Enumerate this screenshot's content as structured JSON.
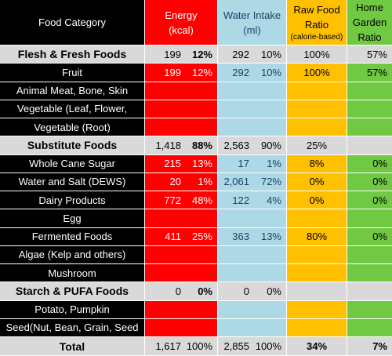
{
  "header": {
    "category": "Food Category",
    "energy_line1": "Energy",
    "energy_line2": "(kcal)",
    "water_line1": "Water Intake",
    "water_line2": "(ml)",
    "raw_line1": "Raw Food",
    "raw_line2": "Ratio",
    "raw_line3": "(calorie-based)",
    "garden_line1": "Home",
    "garden_line2": "Garden",
    "garden_line3": "Ratio"
  },
  "rows": [
    {
      "type": "section",
      "category": "Flesh & Fresh Foods",
      "energy": "199",
      "energy_pct": "12%",
      "water": "292",
      "water_pct": "10%",
      "raw": "100%",
      "garden": "57%"
    },
    {
      "type": "item",
      "category": "Fruit",
      "energy": "199",
      "energy_pct": "12%",
      "water": "292",
      "water_pct": "10%",
      "raw": "100%",
      "garden": "57%"
    },
    {
      "type": "item",
      "category": "Animal Meat, Bone, Skin",
      "energy": "",
      "energy_pct": "",
      "water": "",
      "water_pct": "",
      "raw": "",
      "garden": ""
    },
    {
      "type": "item",
      "category": "Vegetable (Leaf, Flower,",
      "energy": "",
      "energy_pct": "",
      "water": "",
      "water_pct": "",
      "raw": "",
      "garden": ""
    },
    {
      "type": "item",
      "category": "Vegetable (Root)",
      "energy": "",
      "energy_pct": "",
      "water": "",
      "water_pct": "",
      "raw": "",
      "garden": ""
    },
    {
      "type": "section",
      "category": "Substitute Foods",
      "energy": "1,418",
      "energy_pct": "88%",
      "water": "2,563",
      "water_pct": "90%",
      "raw": "25%",
      "garden": ""
    },
    {
      "type": "item",
      "category": "Whole Cane Sugar",
      "energy": "215",
      "energy_pct": "13%",
      "water": "17",
      "water_pct": "1%",
      "raw": "8%",
      "garden": "0%"
    },
    {
      "type": "item",
      "category": "Water and Salt (DEWS)",
      "energy": "20",
      "energy_pct": "1%",
      "water": "2,061",
      "water_pct": "72%",
      "raw": "0%",
      "garden": "0%"
    },
    {
      "type": "item",
      "category": "Dairy Products",
      "energy": "772",
      "energy_pct": "48%",
      "water": "122",
      "water_pct": "4%",
      "raw": "0%",
      "garden": "0%"
    },
    {
      "type": "item",
      "category": "Egg",
      "energy": "",
      "energy_pct": "",
      "water": "",
      "water_pct": "",
      "raw": "",
      "garden": ""
    },
    {
      "type": "item",
      "category": "Fermented Foods",
      "energy": "411",
      "energy_pct": "25%",
      "water": "363",
      "water_pct": "13%",
      "raw": "80%",
      "garden": "0%"
    },
    {
      "type": "item",
      "category": "Algae (Kelp and others)",
      "energy": "",
      "energy_pct": "",
      "water": "",
      "water_pct": "",
      "raw": "",
      "garden": ""
    },
    {
      "type": "item",
      "category": "Mushroom",
      "energy": "",
      "energy_pct": "",
      "water": "",
      "water_pct": "",
      "raw": "",
      "garden": ""
    },
    {
      "type": "section",
      "category": "Starch & PUFA Foods",
      "energy": "0",
      "energy_pct": "0%",
      "water": "0",
      "water_pct": "0%",
      "raw": "",
      "garden": ""
    },
    {
      "type": "item",
      "category": "Potato, Pumpkin",
      "energy": "",
      "energy_pct": "",
      "water": "",
      "water_pct": "",
      "raw": "",
      "garden": ""
    },
    {
      "type": "item",
      "category": "Seed(Nut, Bean, Grain, Seed",
      "energy": "",
      "energy_pct": "",
      "water": "",
      "water_pct": "",
      "raw": "",
      "garden": ""
    },
    {
      "type": "total",
      "category": "Total",
      "energy": "1,617",
      "energy_pct": "100%",
      "water": "2,855",
      "water_pct": "100%",
      "raw": "34%",
      "garden": "7%"
    }
  ],
  "colors": {
    "energy": "#ff0000",
    "water": "#add8e6",
    "raw": "#ffc000",
    "garden": "#70c843",
    "category_bg": "#000000",
    "section_bg": "#d9d9d9"
  }
}
